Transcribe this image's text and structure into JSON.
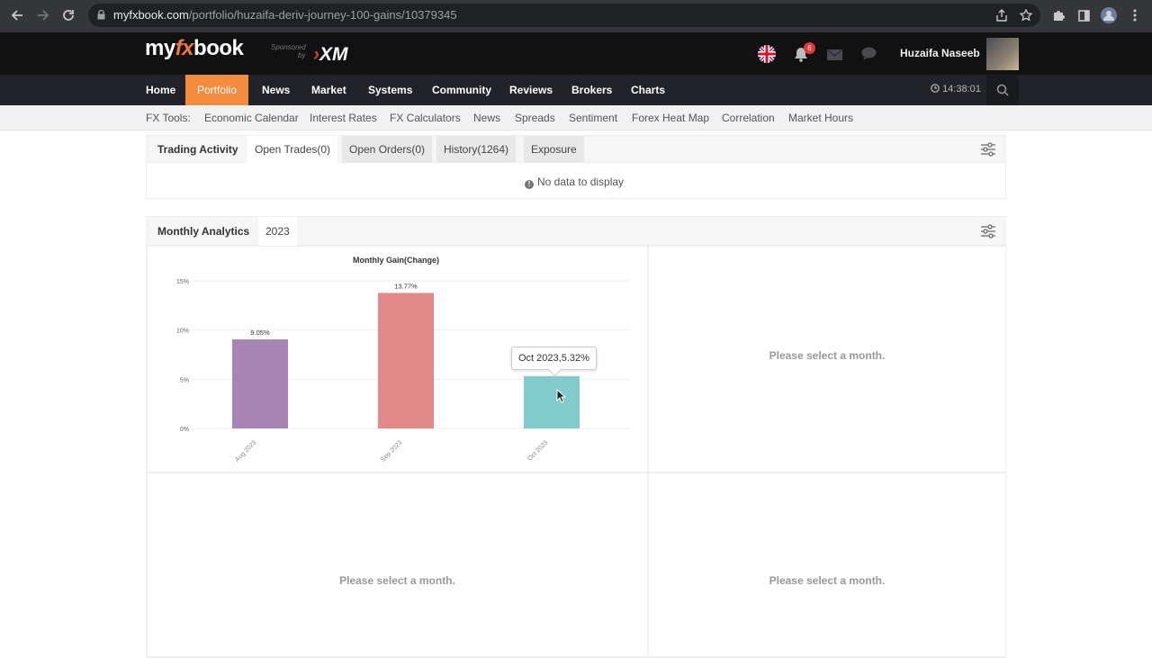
{
  "browser": {
    "url_domain": "myfxbook.com",
    "url_path": "/portfolio/huzaifa-deriv-journey-100-gains/10379345"
  },
  "site": {
    "logo_my": "my",
    "logo_fx": "fx",
    "logo_book": "book",
    "sponsored_line1": "Sponsored",
    "sponsored_line2": "by",
    "sponsor_name": "XM",
    "notification_count": "6",
    "user_name": "Huzaifa Naseeb"
  },
  "main_nav": {
    "items": [
      "Home",
      "Portfolio",
      "News",
      "Market",
      "Systems",
      "Community",
      "Reviews",
      "Brokers",
      "Charts"
    ],
    "active": "Portfolio",
    "clock": "14:38:01"
  },
  "tools_bar": {
    "label": "FX Tools:",
    "items": [
      "Economic Calendar",
      "Interest Rates",
      "FX Calculators",
      "News",
      "Spreads",
      "Sentiment",
      "Forex Heat Map",
      "Correlation",
      "Market Hours"
    ]
  },
  "trading_activity": {
    "title": "Trading Activity",
    "tabs": [
      "Open Trades(0)",
      "Open Orders(0)",
      "History(1264)",
      "Exposure"
    ],
    "empty_message": "No data to display"
  },
  "monthly_analytics": {
    "title": "Monthly Analytics",
    "year": "2023",
    "placeholder": "Please select a month."
  },
  "chart_data": {
    "type": "bar",
    "title": "Monthly Gain(Change)",
    "categories": [
      "Aug 2023",
      "Sep 2023",
      "Oct 2023"
    ],
    "values": [
      9.05,
      13.77,
      5.32
    ],
    "value_labels": [
      "9.05%",
      "13.77%",
      ""
    ],
    "colors": [
      "#a784b4",
      "#e28a8a",
      "#82cbcc"
    ],
    "ylim": [
      0,
      15
    ],
    "yticks": [
      "0%",
      "5%",
      "10%",
      "15%"
    ],
    "grid": true,
    "tooltip": "Oct 2023,5.32%"
  }
}
